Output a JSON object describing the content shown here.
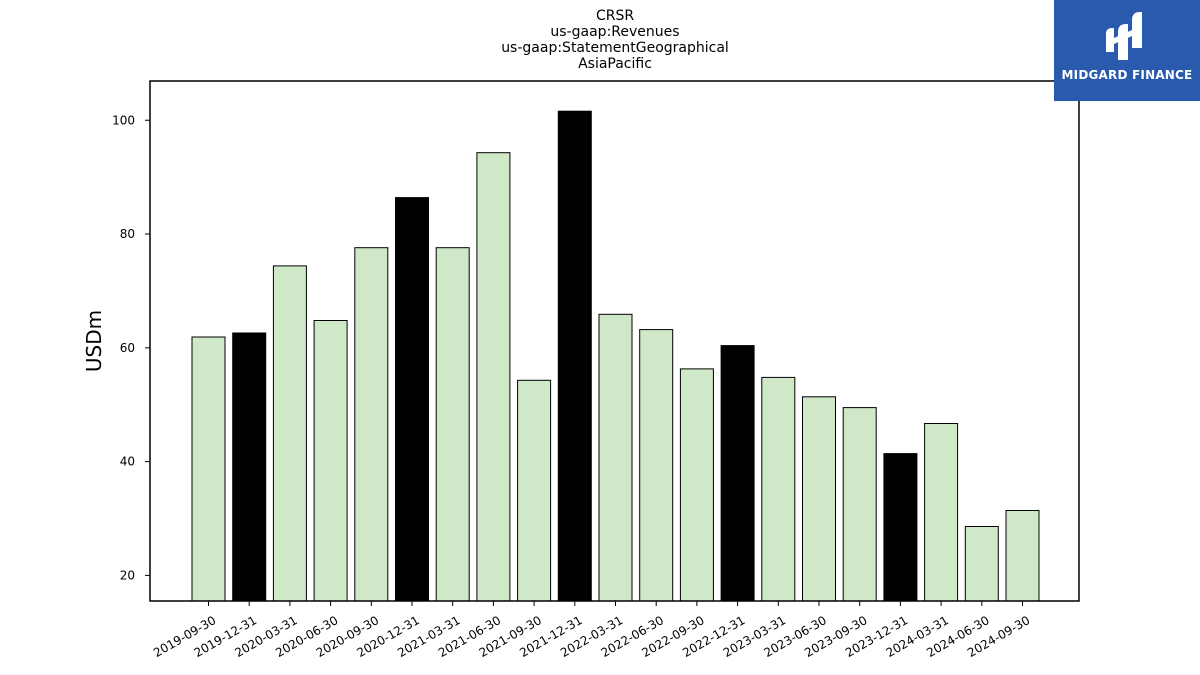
{
  "chart_data": {
    "type": "bar",
    "title": [
      "CRSR",
      "us-gaap:Revenues",
      "us-gaap:StatementGeographical",
      "AsiaPacific"
    ],
    "xlabel": "",
    "ylabel": "USDm",
    "categories": [
      "2019-09-30",
      "2019-12-31",
      "2020-03-31",
      "2020-06-30",
      "2020-09-30",
      "2020-12-31",
      "2021-03-31",
      "2021-06-30",
      "2021-09-30",
      "2021-12-31",
      "2022-03-31",
      "2022-06-30",
      "2022-09-30",
      "2022-12-31",
      "2023-03-31",
      "2023-06-30",
      "2023-09-30",
      "2023-12-31",
      "2024-03-31",
      "2024-06-30",
      "2024-09-30"
    ],
    "values": [
      61.9,
      62.6,
      74.4,
      64.8,
      77.6,
      86.4,
      77.6,
      94.3,
      54.3,
      101.6,
      65.9,
      63.2,
      56.3,
      60.4,
      54.8,
      51.4,
      49.5,
      41.4,
      46.7,
      28.6,
      31.4
    ],
    "bar_colors": [
      "#cfe8c8",
      "#000000",
      "#cfe8c8",
      "#cfe8c8",
      "#cfe8c8",
      "#000000",
      "#cfe8c8",
      "#cfe8c8",
      "#cfe8c8",
      "#000000",
      "#cfe8c8",
      "#cfe8c8",
      "#cfe8c8",
      "#000000",
      "#cfe8c8",
      "#cfe8c8",
      "#cfe8c8",
      "#000000",
      "#cfe8c8",
      "#cfe8c8",
      "#cfe8c8"
    ],
    "yticks": [
      20,
      40,
      60,
      80,
      100
    ],
    "ylim": [
      15.5,
      106.9
    ],
    "grid": false,
    "legend": "none"
  },
  "logo": {
    "text": "MIDGARD FINANCE",
    "background": "#2a5aad"
  }
}
